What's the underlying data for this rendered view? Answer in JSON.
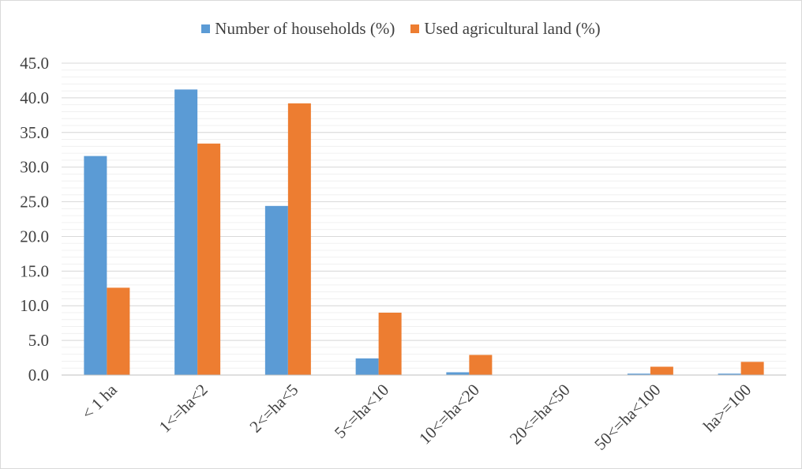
{
  "chart_data": {
    "type": "bar",
    "categories": [
      "< 1 ha",
      "1<=ha<2",
      "2<=ha<5",
      "5<=ha<10",
      "10<=ha<20",
      "20<=ha<50",
      "50<=ha<100",
      "ha>=100"
    ],
    "series": [
      {
        "name": "Number of households (%)",
        "color": "#5b9bd5",
        "values": [
          31.6,
          41.2,
          24.4,
          2.4,
          0.4,
          0.0,
          0.2,
          0.2
        ]
      },
      {
        "name": "Used agricultural land (%)",
        "color": "#ed7d31",
        "values": [
          12.6,
          33.4,
          39.2,
          9.0,
          2.9,
          0.0,
          1.2,
          1.9
        ]
      }
    ],
    "y_ticks": [
      "0.0",
      "5.0",
      "10.0",
      "15.0",
      "20.0",
      "25.0",
      "30.0",
      "35.0",
      "40.0",
      "45.0"
    ],
    "ylim": [
      0,
      45
    ],
    "minor_grid_step": 1,
    "grid": true,
    "legend_position": "top",
    "title": "",
    "xlabel": "",
    "ylabel": ""
  }
}
